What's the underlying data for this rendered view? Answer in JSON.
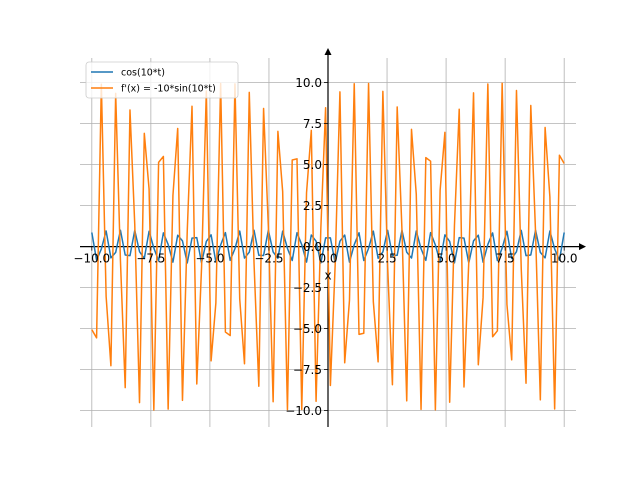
{
  "chart_data": {
    "type": "line",
    "title": "",
    "xlabel": "x",
    "ylabel": "",
    "xlim": [
      -10.5,
      10.5
    ],
    "ylim": [
      -11,
      11.5
    ],
    "grid": true,
    "legend_position": "top-left",
    "axes_style": "spines-centered-at-origin",
    "x_ticks": [
      -10.0,
      -7.5,
      -5.0,
      -2.5,
      0.0,
      2.5,
      5.0,
      7.5,
      10.0
    ],
    "y_ticks": [
      -10.0,
      -7.5,
      -5.0,
      -2.5,
      0.0,
      2.5,
      5.0,
      7.5,
      10.0
    ],
    "x_tick_labels": [
      "−10.0",
      "−7.5",
      "−5.0",
      "−2.5",
      "0.0",
      "2.5",
      "5.0",
      "7.5",
      "10.0"
    ],
    "y_tick_labels": [
      "−10.0",
      "−7.5",
      "−5.0",
      "−2.5",
      "0.0",
      "2.5",
      "5.0",
      "7.5",
      "10.0"
    ],
    "sampling": {
      "x_start": -10,
      "x_end": 10,
      "points": 100
    },
    "series": [
      {
        "name": "cos(10*t)",
        "function": "cos(10*x)",
        "color": "#1f77b4"
      },
      {
        "name": "f'(x) = -10*sin(10*t)",
        "function": "-10*sin(10*x)",
        "color": "#ff7f0e"
      }
    ]
  }
}
